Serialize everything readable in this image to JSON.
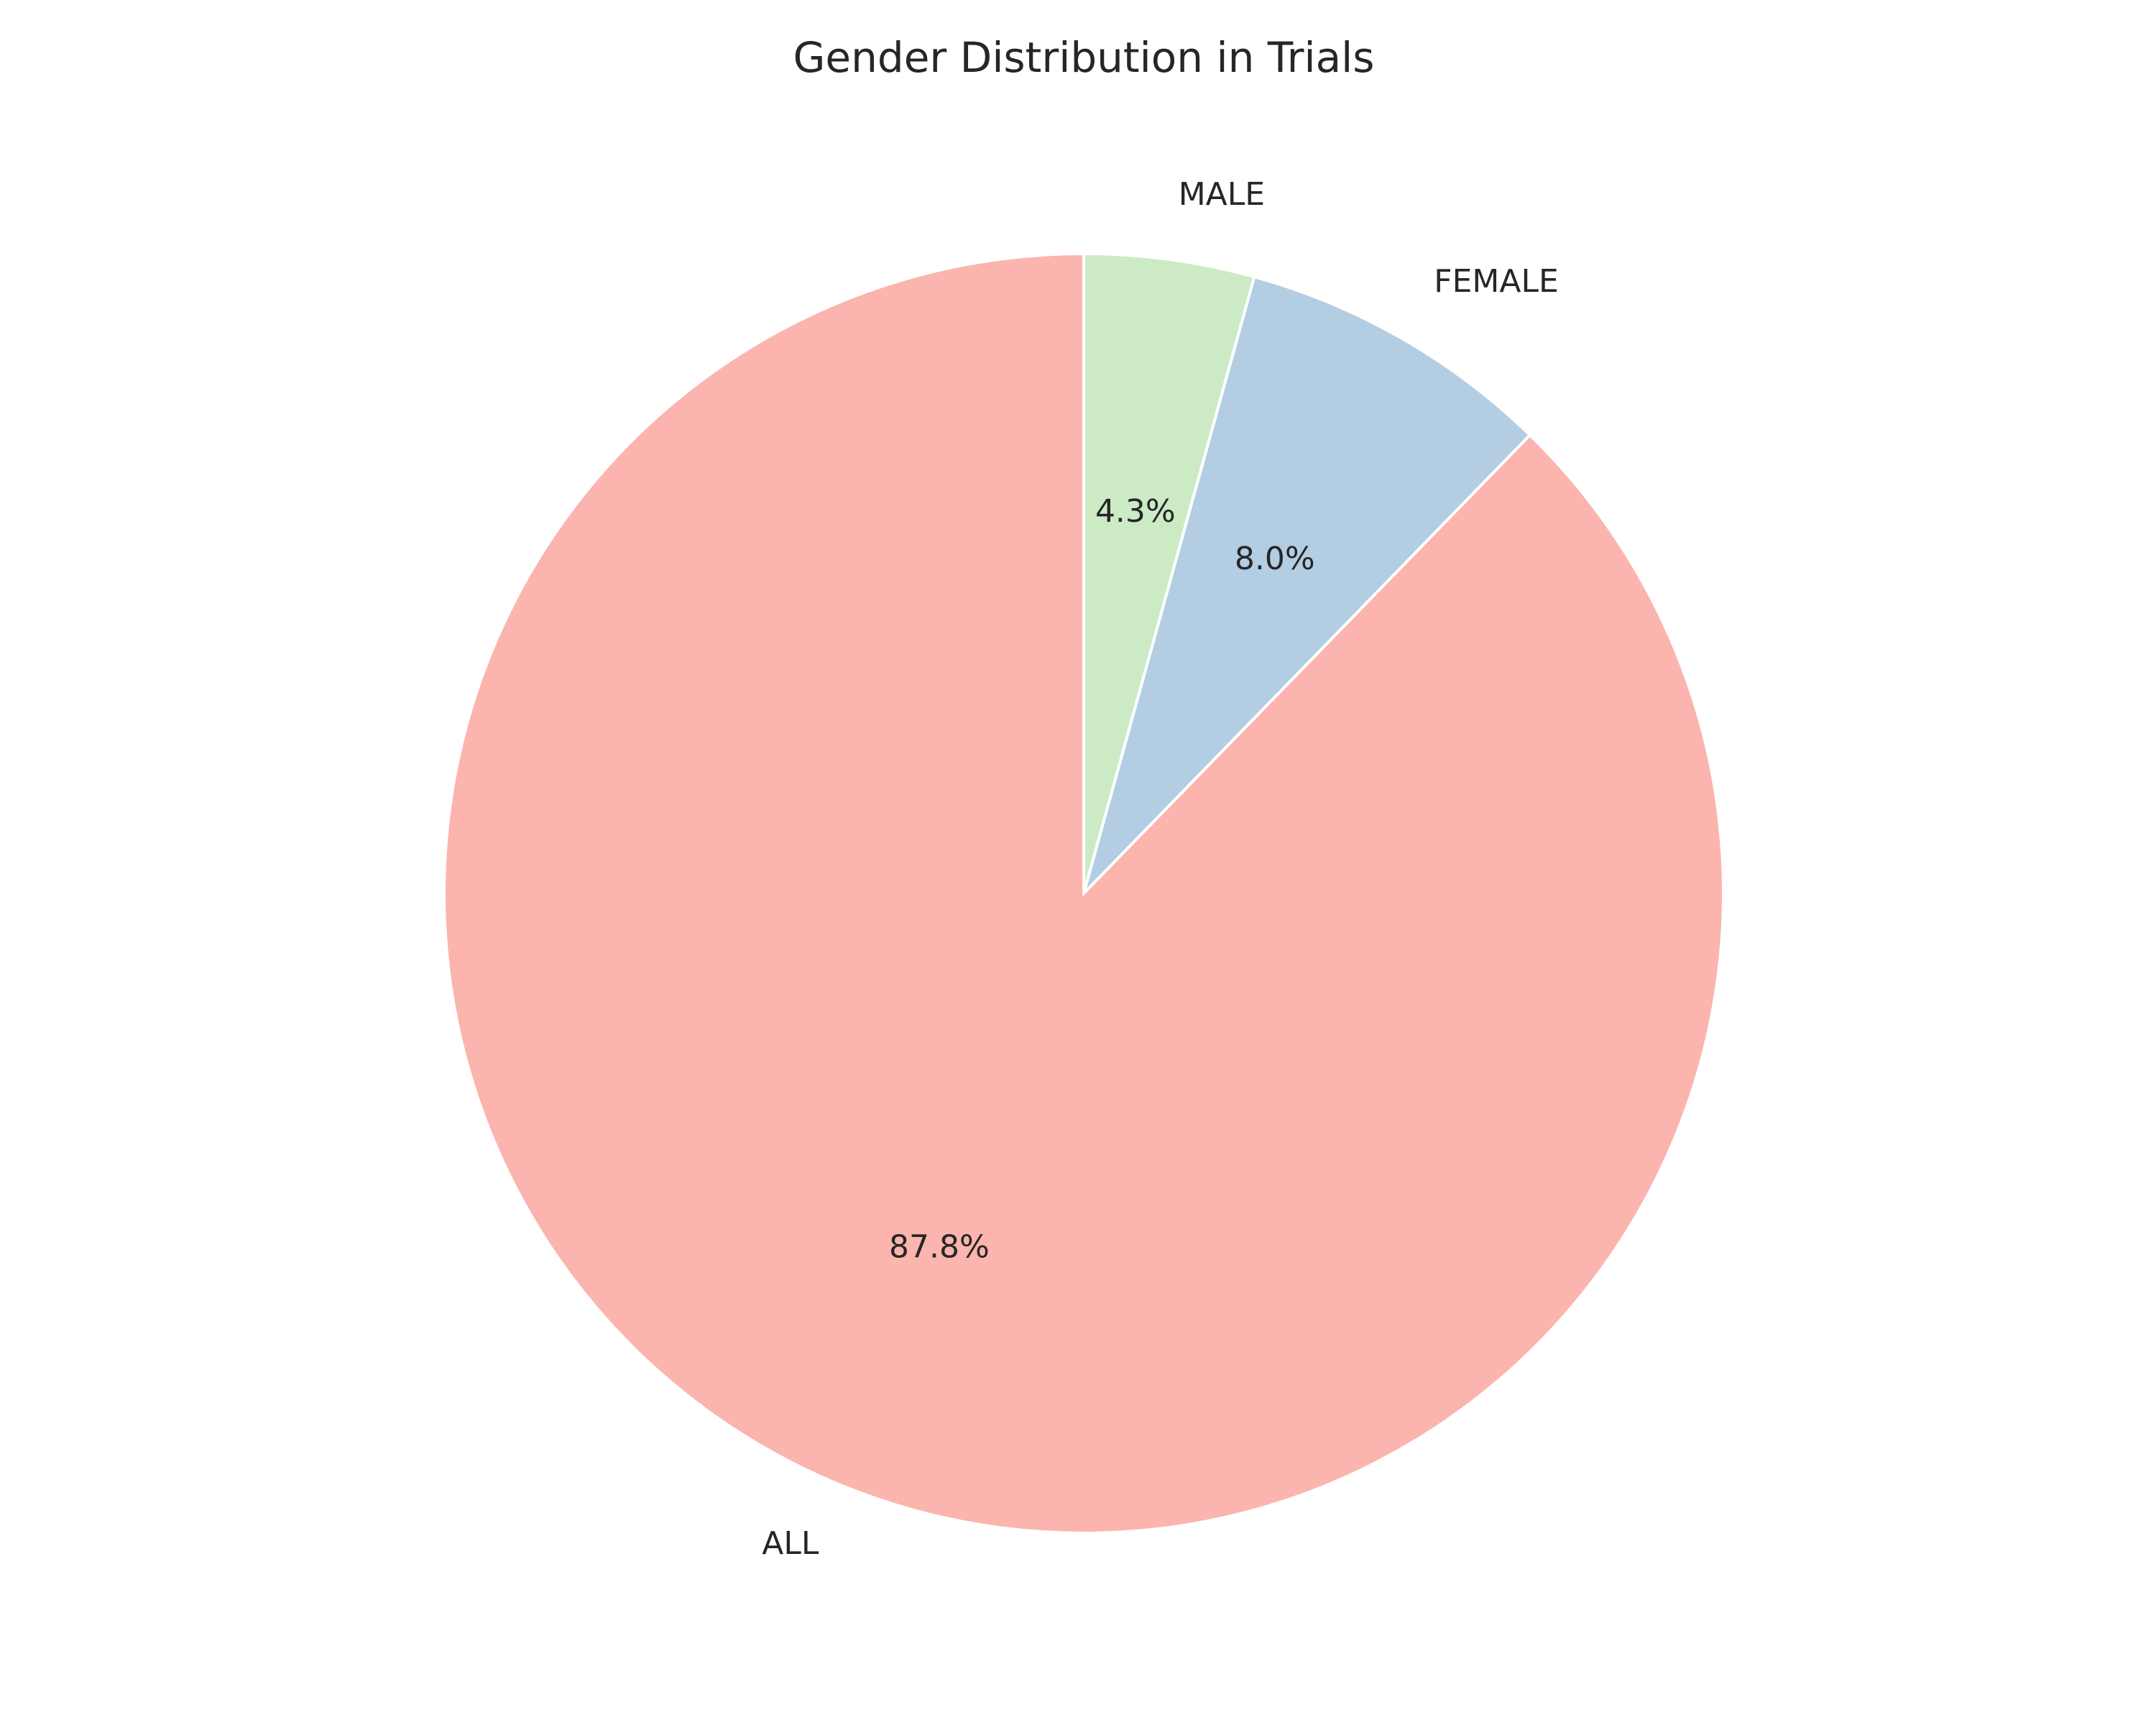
{
  "chart_data": {
    "type": "pie",
    "title": "Gender Distribution in Trials",
    "start_angle_deg": 90,
    "direction": "clockwise",
    "slices": [
      {
        "label": "MALE",
        "value": 4.3,
        "pct_text": "4.3%",
        "color": "#CCEBC5"
      },
      {
        "label": "FEMALE",
        "value": 8.0,
        "pct_text": "8.0%",
        "color": "#B3CDE3"
      },
      {
        "label": "ALL",
        "value": 87.8,
        "pct_text": "87.8%",
        "color": "#FBB4AE"
      }
    ]
  }
}
